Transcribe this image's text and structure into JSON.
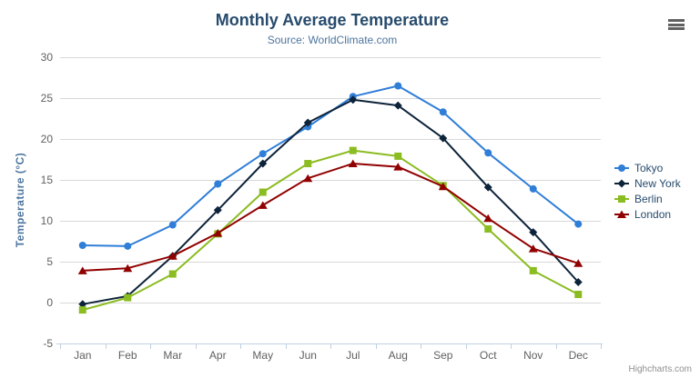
{
  "title": "Monthly Average Temperature",
  "subtitle": "Source: WorldClimate.com",
  "credits": "Highcharts.com",
  "colors": {
    "title_text": "#274b6d",
    "subtitle_text": "#4d759e",
    "axis_title_text": "#4d759e",
    "tick_label_text": "#606060",
    "gridline": "#d8d8d8",
    "axis_line": "#c0d0e0",
    "legend_text": "#274b6d",
    "credits_text": "#909090",
    "menu_icon": "#606060",
    "background": "#ffffff"
  },
  "chart_data": {
    "type": "line",
    "title": "Monthly Average Temperature",
    "subtitle": "Source: WorldClimate.com",
    "categories": [
      "Jan",
      "Feb",
      "Mar",
      "Apr",
      "May",
      "Jun",
      "Jul",
      "Aug",
      "Sep",
      "Oct",
      "Nov",
      "Dec"
    ],
    "series": [
      {
        "name": "Tokyo",
        "color": "#2f7ed8",
        "marker": "circle",
        "values": [
          7.0,
          6.9,
          9.5,
          14.5,
          18.2,
          21.5,
          25.2,
          26.5,
          23.3,
          18.3,
          13.9,
          9.6
        ]
      },
      {
        "name": "New York",
        "color": "#0d233a",
        "marker": "diamond",
        "values": [
          -0.2,
          0.8,
          5.7,
          11.3,
          17.0,
          22.0,
          24.8,
          24.1,
          20.1,
          14.1,
          8.6,
          2.5
        ]
      },
      {
        "name": "Berlin",
        "color": "#8bbc21",
        "marker": "square",
        "values": [
          -0.9,
          0.6,
          3.5,
          8.4,
          13.5,
          17.0,
          18.6,
          17.9,
          14.3,
          9.0,
          3.9,
          1.0
        ]
      },
      {
        "name": "London",
        "color": "#910000",
        "marker": "triangle",
        "values": [
          3.9,
          4.2,
          5.7,
          8.5,
          11.9,
          15.2,
          17.0,
          16.6,
          14.2,
          10.3,
          6.6,
          4.8
        ]
      }
    ],
    "xlabel": "",
    "ylabel": "Temperature (°C)",
    "ylim": [
      -5,
      30
    ],
    "yticks": [
      -5,
      0,
      5,
      10,
      15,
      20,
      25,
      30
    ],
    "grid": true,
    "legend_position": "right"
  }
}
